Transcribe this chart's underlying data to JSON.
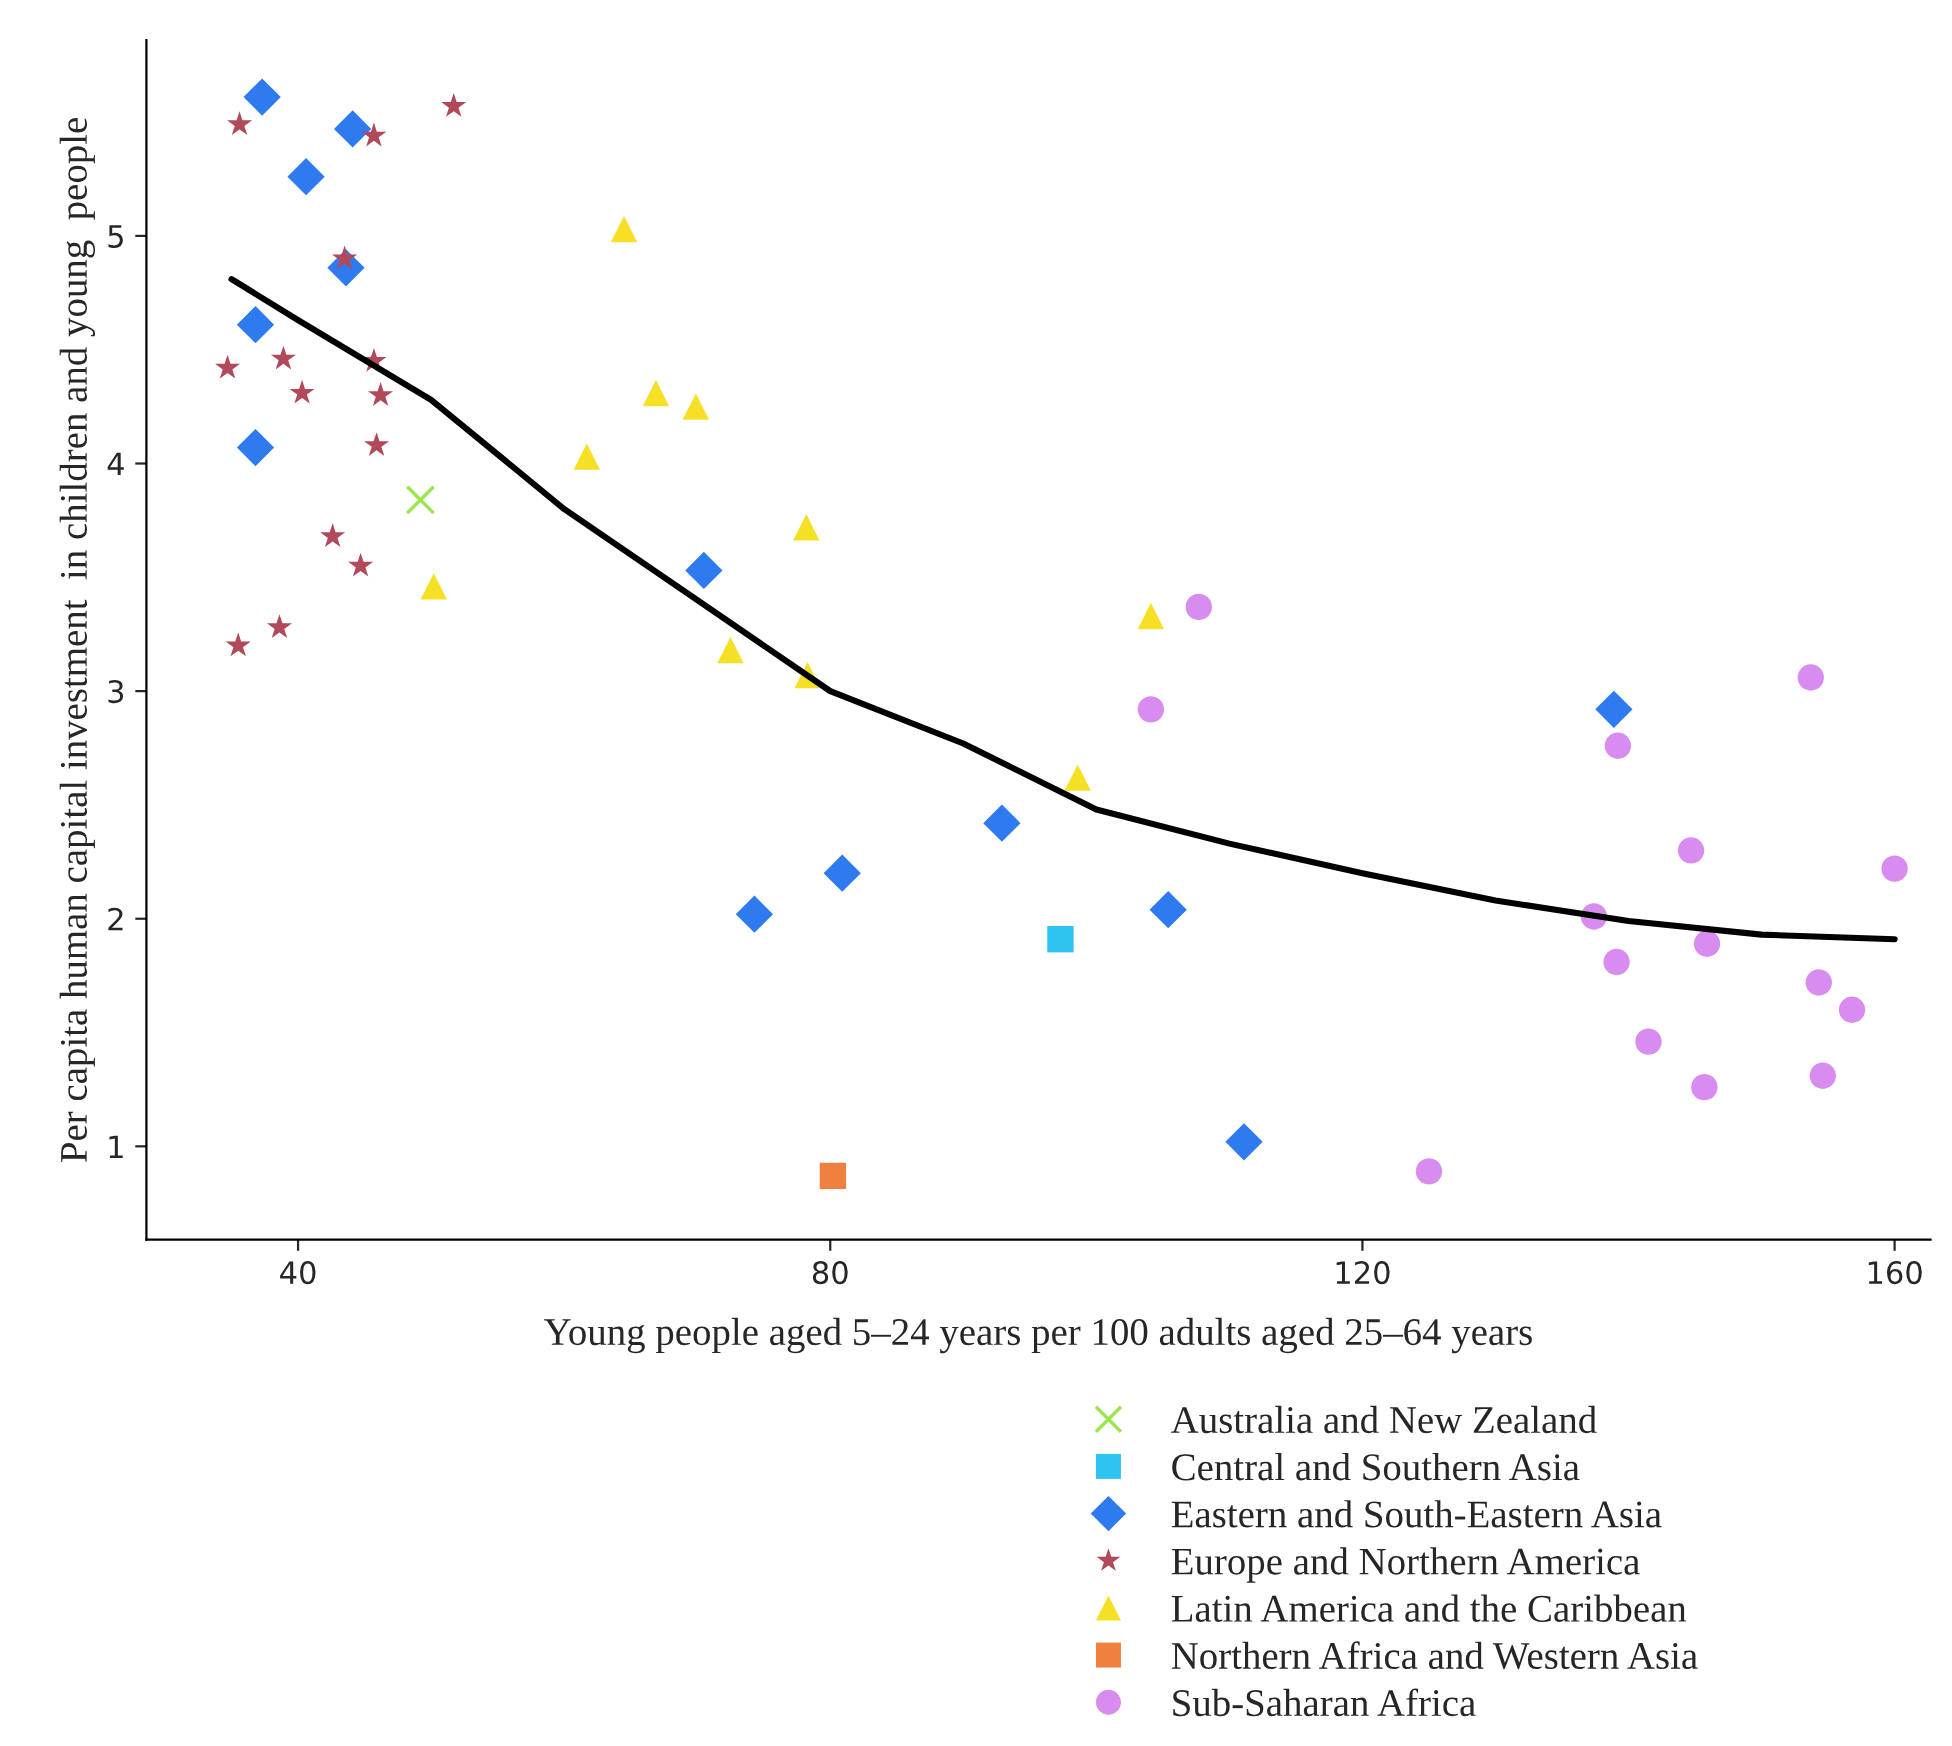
{
  "chart_data": {
    "type": "scatter",
    "xlabel": "Young people aged 5–24 years per 100 adults aged 25–64 years",
    "ylabel": "Per capita human capital investment  in children and young  people",
    "xlim": [
      28.6,
      162.7
    ],
    "ylim": [
      0.59,
      5.86
    ],
    "xticks": [
      40,
      80,
      120,
      160
    ],
    "yticks": [
      1,
      2,
      3,
      4,
      5
    ],
    "grid": false,
    "legend": "bottom",
    "series": [
      {
        "name": "Australia and New Zealand",
        "color": "#99e64d",
        "marker": "cross",
        "x": [
          49.2
        ],
        "values": [
          3.84
        ]
      },
      {
        "name": "Central and Southern Asia",
        "color": "#2ec4f0",
        "marker": "square",
        "x": [
          97.3
        ],
        "values": [
          1.91
        ]
      },
      {
        "name": "Eastern and South-Eastern Asia",
        "color": "#2e7bf0",
        "marker": "diamond",
        "x": [
          37.3,
          44.1,
          40.6,
          43.6,
          36.8,
          36.8,
          70.5,
          92.9,
          80.9,
          74.3,
          105.4,
          138.9,
          111.1
        ],
        "values": [
          5.61,
          5.47,
          5.26,
          4.86,
          4.61,
          4.07,
          3.53,
          2.42,
          2.2,
          2.02,
          2.04,
          2.92,
          1.02
        ]
      },
      {
        "name": "Europe and Northern America",
        "color": "#b04a5a",
        "marker": "star",
        "x": [
          35.6,
          51.7,
          45.7,
          43.5,
          34.7,
          38.9,
          40.3,
          45.7,
          46.2,
          45.9,
          42.6,
          44.7,
          38.6,
          35.5
        ],
        "values": [
          5.49,
          5.57,
          5.44,
          4.9,
          4.42,
          4.46,
          4.31,
          4.45,
          4.3,
          4.08,
          3.68,
          3.55,
          3.28,
          3.2
        ]
      },
      {
        "name": "Latin America and the Caribbean",
        "color": "#f5e025",
        "marker": "triangle",
        "x": [
          64.5,
          66.9,
          69.9,
          61.7,
          78.2,
          50.2,
          72.5,
          78.3,
          104.1,
          98.6
        ],
        "values": [
          5.03,
          4.31,
          4.25,
          4.03,
          3.72,
          3.46,
          3.18,
          3.07,
          3.33,
          2.62
        ]
      },
      {
        "name": "Northern Africa and Western Asia",
        "color": "#f08040",
        "marker": "square",
        "x": [
          80.2
        ],
        "values": [
          0.87
        ]
      },
      {
        "name": "Sub-Saharan Africa",
        "color": "#d98cf0",
        "marker": "circle",
        "x": [
          107.7,
          104.1,
          139.2,
          153.7,
          144.7,
          137.4,
          139.1,
          145.9,
          160.0,
          154.3,
          156.8,
          141.5,
          145.7,
          154.6,
          125.0
        ],
        "values": [
          3.37,
          2.92,
          2.76,
          3.06,
          2.3,
          2.01,
          1.81,
          1.89,
          2.22,
          1.72,
          1.6,
          1.46,
          1.26,
          1.31,
          0.89
        ]
      },
      {
        "type": "line",
        "color": "#000000",
        "marker": "none",
        "x": [
          35,
          40,
          50,
          60,
          70,
          80,
          90,
          100,
          110,
          120,
          130,
          140,
          150,
          160
        ],
        "values": [
          4.81,
          4.63,
          4.28,
          3.8,
          3.4,
          3.0,
          2.77,
          2.48,
          2.33,
          2.2,
          2.08,
          1.99,
          1.93,
          1.91
        ]
      }
    ]
  }
}
